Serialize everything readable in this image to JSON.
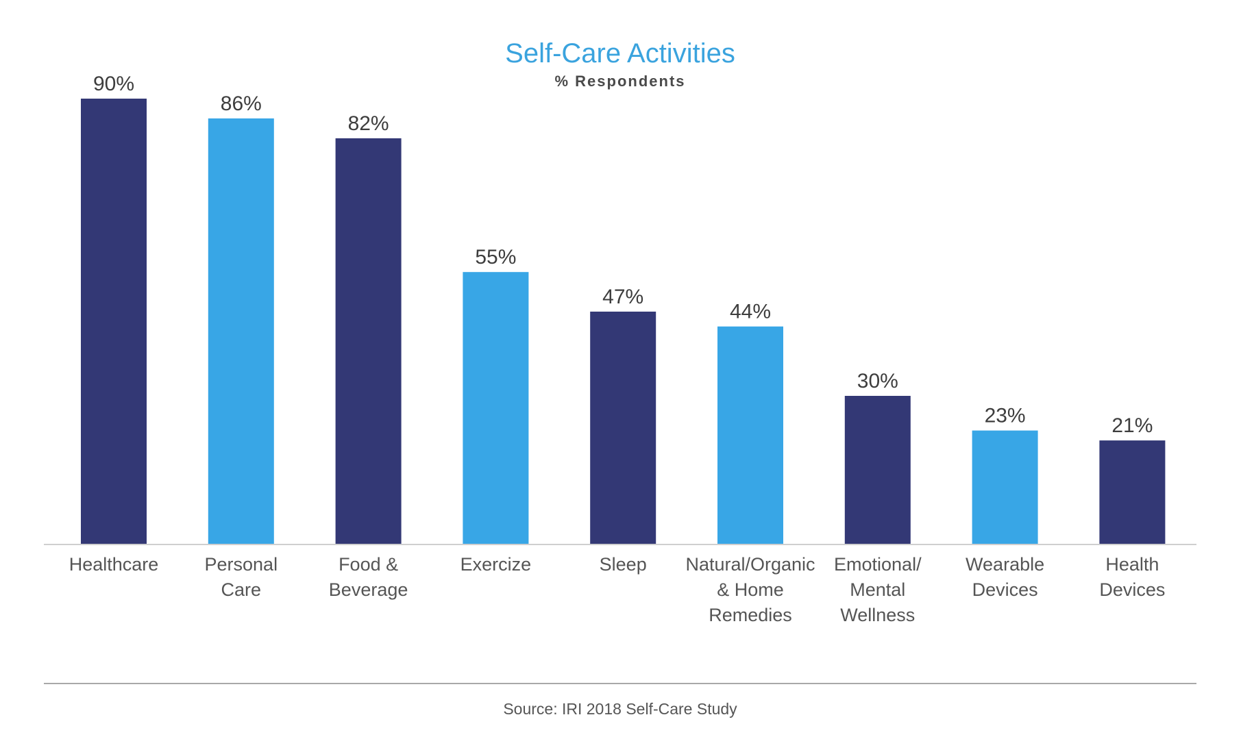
{
  "chart_data": {
    "type": "bar",
    "title": "Self-Care Activities",
    "subtitle": "% Respondents",
    "categories": [
      [
        "Healthcare"
      ],
      [
        "Personal",
        "Care"
      ],
      [
        "Food &",
        "Beverage"
      ],
      [
        "Exercize"
      ],
      [
        "Sleep"
      ],
      [
        "Natural/Organic",
        "& Home",
        "Remedies"
      ],
      [
        "Emotional/",
        "Mental",
        "Wellness"
      ],
      [
        "Wearable",
        "Devices"
      ],
      [
        "Health",
        "Devices"
      ]
    ],
    "values": [
      90,
      86,
      82,
      55,
      47,
      44,
      30,
      23,
      21
    ],
    "value_labels": [
      "90%",
      "86%",
      "82%",
      "55%",
      "47%",
      "44%",
      "30%",
      "23%",
      "21%"
    ],
    "bar_color_pattern": [
      "dark",
      "light",
      "dark",
      "light",
      "dark",
      "light",
      "dark",
      "light",
      "dark"
    ],
    "ylim": [
      0,
      100
    ],
    "grid": false,
    "legend": "none",
    "source": "Source: IRI 2018 Self-Care Study"
  },
  "colors": {
    "dark": "#333875",
    "light": "#38a6e6",
    "title": "#3aa3de",
    "subtitle": "#4a4a4a",
    "value_label": "#3d3d3d",
    "category_label": "#555555",
    "axis": "#cfcfcf",
    "source_rule": "#a8a8a8",
    "source": "#555555"
  }
}
